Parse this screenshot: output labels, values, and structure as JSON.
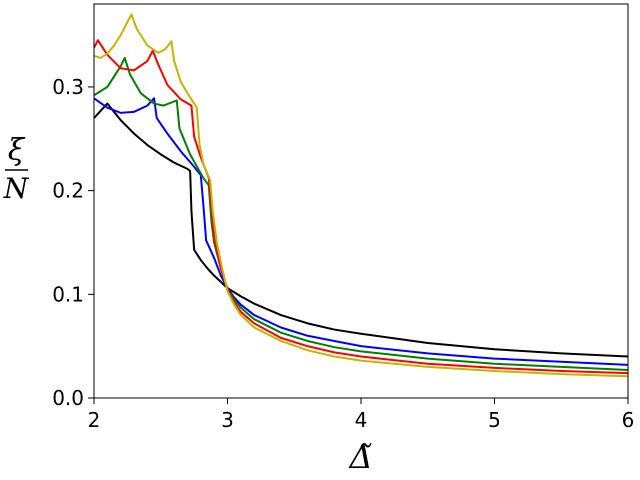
{
  "chart_data": {
    "type": "line",
    "title": "",
    "xlabel": "Δ̃",
    "ylabel_numerator": "ξ",
    "ylabel_denominator": "N",
    "xlim": [
      2,
      6
    ],
    "ylim": [
      0,
      0.38
    ],
    "x_ticks": [
      2,
      3,
      4,
      5,
      6
    ],
    "x_tick_labels": [
      "2",
      "3",
      "4",
      "5",
      "6"
    ],
    "y_ticks": [
      0,
      0.1,
      0.2,
      0.3
    ],
    "y_tick_labels": [
      "0.0",
      "0.1",
      "0.2",
      "0.3"
    ],
    "grid": false,
    "legend": "none",
    "series": [
      {
        "color": "#000000",
        "points": [
          [
            2.0,
            0.27
          ],
          [
            2.05,
            0.277
          ],
          [
            2.1,
            0.284
          ],
          [
            2.15,
            0.276
          ],
          [
            2.2,
            0.268
          ],
          [
            2.3,
            0.255
          ],
          [
            2.4,
            0.244
          ],
          [
            2.5,
            0.235
          ],
          [
            2.6,
            0.227
          ],
          [
            2.7,
            0.221
          ],
          [
            2.72,
            0.219
          ],
          [
            2.73,
            0.18
          ],
          [
            2.75,
            0.143
          ],
          [
            2.8,
            0.133
          ],
          [
            2.85,
            0.125
          ],
          [
            2.9,
            0.118
          ],
          [
            2.95,
            0.112
          ],
          [
            3.0,
            0.106
          ],
          [
            3.1,
            0.098
          ],
          [
            3.2,
            0.091
          ],
          [
            3.4,
            0.08
          ],
          [
            3.6,
            0.072
          ],
          [
            3.8,
            0.066
          ],
          [
            4.0,
            0.062
          ],
          [
            4.5,
            0.053
          ],
          [
            5.0,
            0.047
          ],
          [
            5.5,
            0.043
          ],
          [
            6.0,
            0.04
          ]
        ]
      },
      {
        "color": "#0000ff",
        "points": [
          [
            2.0,
            0.289
          ],
          [
            2.1,
            0.28
          ],
          [
            2.2,
            0.275
          ],
          [
            2.3,
            0.276
          ],
          [
            2.4,
            0.282
          ],
          [
            2.45,
            0.289
          ],
          [
            2.47,
            0.27
          ],
          [
            2.55,
            0.255
          ],
          [
            2.65,
            0.238
          ],
          [
            2.75,
            0.223
          ],
          [
            2.8,
            0.215
          ],
          [
            2.82,
            0.185
          ],
          [
            2.84,
            0.152
          ],
          [
            2.9,
            0.135
          ],
          [
            2.95,
            0.118
          ],
          [
            3.0,
            0.106
          ],
          [
            3.05,
            0.097
          ],
          [
            3.1,
            0.09
          ],
          [
            3.2,
            0.08
          ],
          [
            3.4,
            0.068
          ],
          [
            3.6,
            0.06
          ],
          [
            3.8,
            0.055
          ],
          [
            4.0,
            0.05
          ],
          [
            4.5,
            0.043
          ],
          [
            5.0,
            0.038
          ],
          [
            5.5,
            0.035
          ],
          [
            6.0,
            0.032
          ]
        ]
      },
      {
        "color": "#008000",
        "points": [
          [
            2.0,
            0.292
          ],
          [
            2.1,
            0.3
          ],
          [
            2.2,
            0.32
          ],
          [
            2.23,
            0.328
          ],
          [
            2.27,
            0.312
          ],
          [
            2.35,
            0.294
          ],
          [
            2.45,
            0.284
          ],
          [
            2.52,
            0.282
          ],
          [
            2.58,
            0.285
          ],
          [
            2.62,
            0.287
          ],
          [
            2.64,
            0.26
          ],
          [
            2.72,
            0.235
          ],
          [
            2.82,
            0.212
          ],
          [
            2.86,
            0.205
          ],
          [
            2.88,
            0.17
          ],
          [
            2.9,
            0.15
          ],
          [
            2.95,
            0.125
          ],
          [
            3.0,
            0.105
          ],
          [
            3.05,
            0.095
          ],
          [
            3.1,
            0.087
          ],
          [
            3.2,
            0.076
          ],
          [
            3.4,
            0.063
          ],
          [
            3.6,
            0.055
          ],
          [
            3.8,
            0.049
          ],
          [
            4.0,
            0.045
          ],
          [
            4.5,
            0.038
          ],
          [
            5.0,
            0.033
          ],
          [
            5.5,
            0.03
          ],
          [
            6.0,
            0.027
          ]
        ]
      },
      {
        "color": "#ff0000",
        "points": [
          [
            2.0,
            0.338
          ],
          [
            2.03,
            0.345
          ],
          [
            2.1,
            0.331
          ],
          [
            2.2,
            0.318
          ],
          [
            2.3,
            0.316
          ],
          [
            2.4,
            0.325
          ],
          [
            2.44,
            0.335
          ],
          [
            2.48,
            0.322
          ],
          [
            2.55,
            0.302
          ],
          [
            2.65,
            0.288
          ],
          [
            2.73,
            0.282
          ],
          [
            2.75,
            0.252
          ],
          [
            2.8,
            0.232
          ],
          [
            2.86,
            0.212
          ],
          [
            2.88,
            0.185
          ],
          [
            2.9,
            0.155
          ],
          [
            2.95,
            0.125
          ],
          [
            3.0,
            0.105
          ],
          [
            3.05,
            0.092
          ],
          [
            3.1,
            0.083
          ],
          [
            3.2,
            0.072
          ],
          [
            3.4,
            0.058
          ],
          [
            3.6,
            0.05
          ],
          [
            3.8,
            0.044
          ],
          [
            4.0,
            0.04
          ],
          [
            4.5,
            0.033
          ],
          [
            5.0,
            0.029
          ],
          [
            5.5,
            0.026
          ],
          [
            6.0,
            0.024
          ]
        ]
      },
      {
        "color": "#c8b400",
        "points": [
          [
            2.0,
            0.33
          ],
          [
            2.05,
            0.328
          ],
          [
            2.1,
            0.332
          ],
          [
            2.15,
            0.34
          ],
          [
            2.2,
            0.35
          ],
          [
            2.28,
            0.37
          ],
          [
            2.32,
            0.356
          ],
          [
            2.4,
            0.34
          ],
          [
            2.48,
            0.333
          ],
          [
            2.53,
            0.336
          ],
          [
            2.58,
            0.344
          ],
          [
            2.6,
            0.325
          ],
          [
            2.65,
            0.305
          ],
          [
            2.7,
            0.294
          ],
          [
            2.77,
            0.28
          ],
          [
            2.79,
            0.245
          ],
          [
            2.82,
            0.225
          ],
          [
            2.87,
            0.21
          ],
          [
            2.89,
            0.18
          ],
          [
            2.92,
            0.15
          ],
          [
            2.96,
            0.125
          ],
          [
            3.0,
            0.103
          ],
          [
            3.05,
            0.09
          ],
          [
            3.1,
            0.08
          ],
          [
            3.2,
            0.068
          ],
          [
            3.4,
            0.055
          ],
          [
            3.6,
            0.046
          ],
          [
            3.8,
            0.04
          ],
          [
            4.0,
            0.036
          ],
          [
            4.5,
            0.03
          ],
          [
            5.0,
            0.026
          ],
          [
            5.5,
            0.023
          ],
          [
            6.0,
            0.021
          ]
        ]
      }
    ]
  }
}
